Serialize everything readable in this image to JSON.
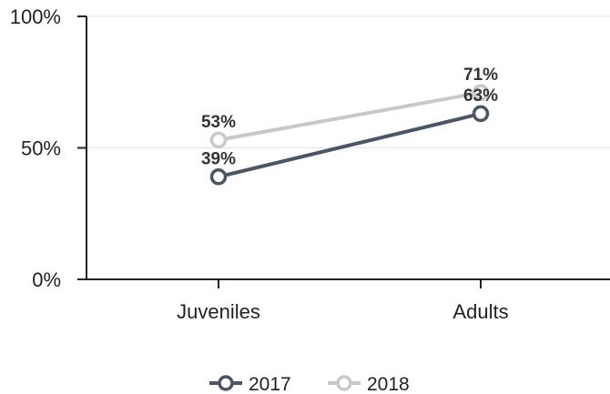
{
  "chart_data": {
    "type": "line",
    "categories": [
      "Juveniles",
      "Adults"
    ],
    "ylim": [
      0,
      100
    ],
    "yticks": [
      {
        "value": 0,
        "label": "0%"
      },
      {
        "value": 50,
        "label": "50%"
      },
      {
        "value": 100,
        "label": "100%"
      }
    ],
    "grid": true,
    "legend_position": "bottom-center",
    "series": [
      {
        "name": "2017",
        "values": [
          39,
          63
        ],
        "labels": [
          "39%",
          "63%"
        ],
        "color": "#4a5568"
      },
      {
        "name": "2018",
        "values": [
          53,
          71
        ],
        "labels": [
          "53%",
          "71%"
        ],
        "color": "#c8c8c8"
      }
    ]
  }
}
